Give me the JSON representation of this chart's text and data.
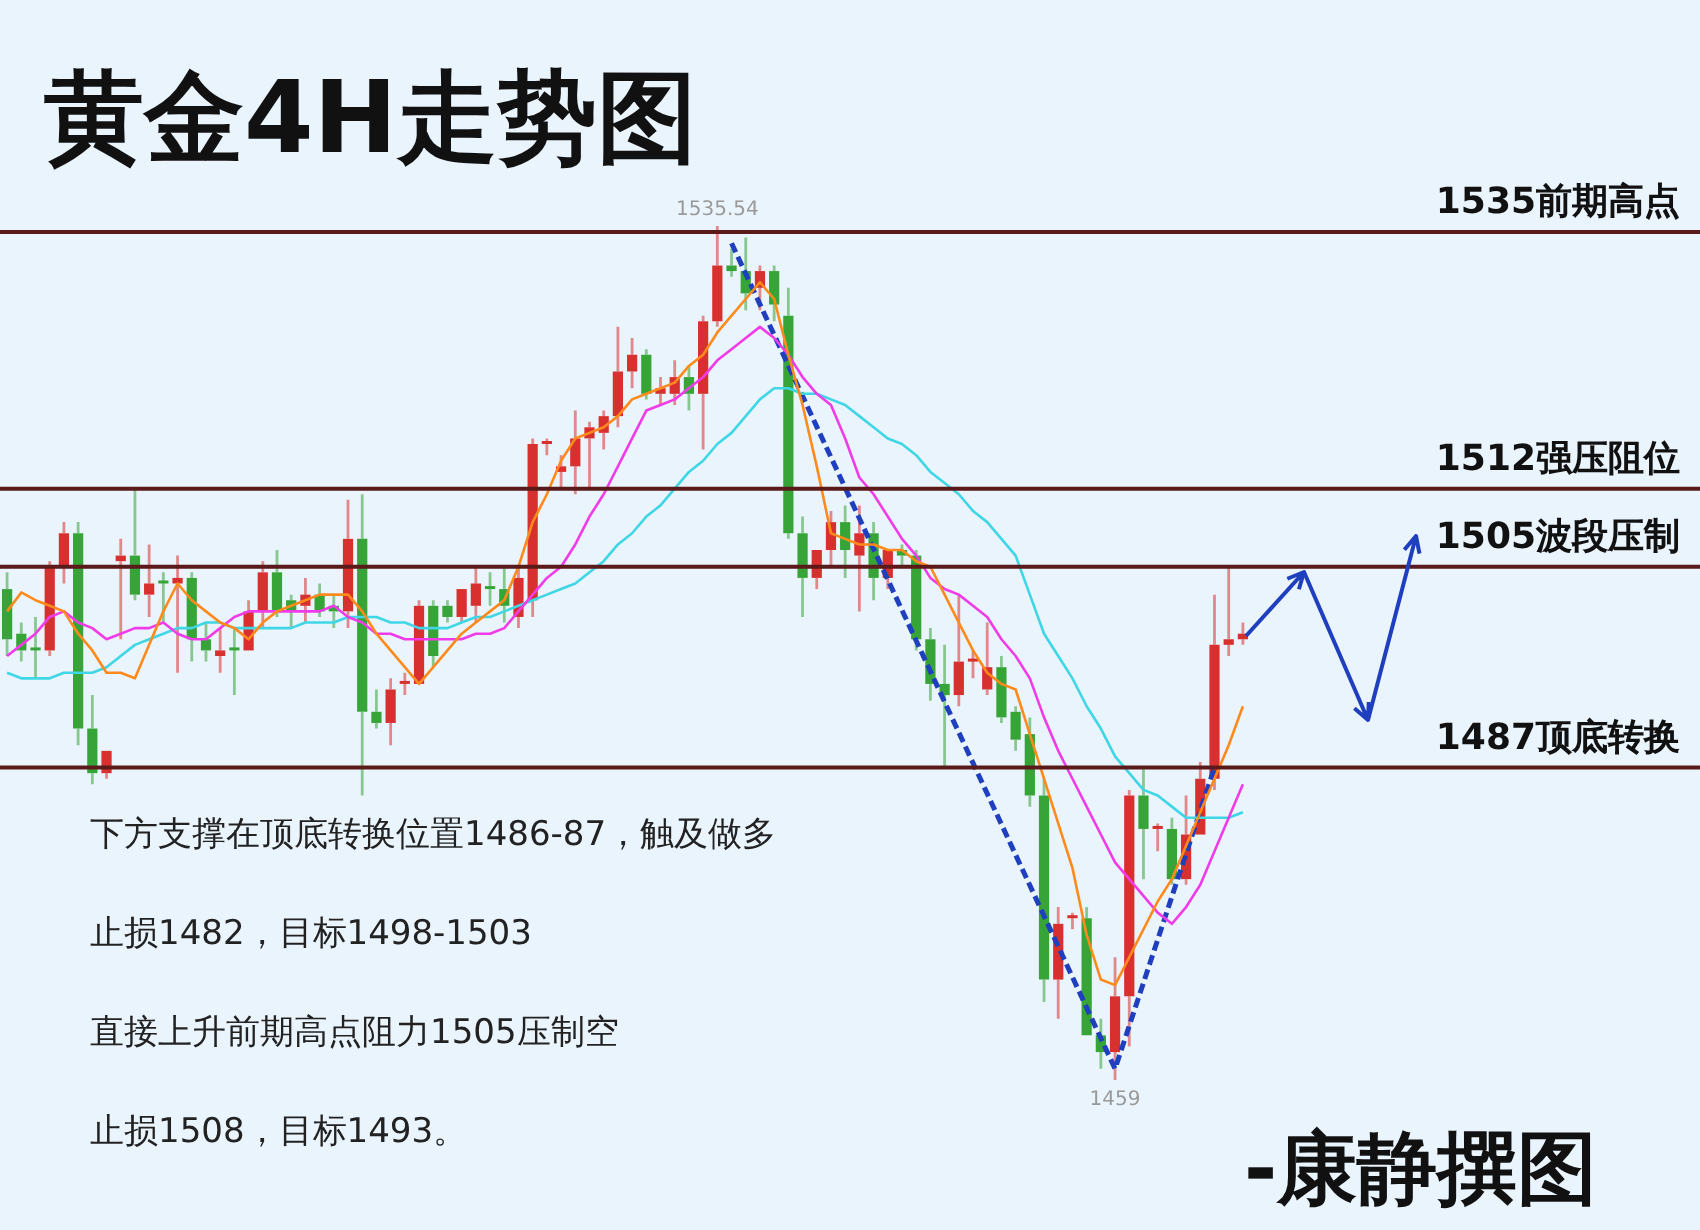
{
  "chart_data": {
    "type": "candlestick",
    "title": "黄金4H走势图",
    "categories": [
      null,
      null,
      null,
      null,
      null,
      null,
      null,
      null,
      null,
      null,
      null,
      null,
      null,
      null,
      null,
      null,
      null,
      null,
      null,
      null,
      null,
      null,
      null,
      null,
      null,
      null,
      null,
      null,
      null,
      null,
      null,
      null,
      null,
      null,
      null,
      null,
      null,
      null,
      null,
      null,
      null,
      null,
      null,
      null,
      null,
      null,
      null,
      null,
      null,
      null,
      null,
      null,
      null,
      null,
      null,
      null,
      null,
      null,
      null,
      null,
      null,
      null,
      null,
      null,
      null,
      null,
      null,
      null,
      null,
      null,
      null,
      null,
      null,
      null,
      null,
      null,
      null,
      null,
      null,
      null,
      null,
      null,
      null,
      null,
      null,
      null,
      null,
      null
    ],
    "ohlc": [
      [
        1503,
        1504.5,
        1497,
        1498.5
      ],
      [
        1499,
        1500,
        1496.5,
        1497.5
      ],
      [
        1497.5,
        1500.5,
        1495,
        1497.5
      ],
      [
        1497.5,
        1505.5,
        1497,
        1505
      ],
      [
        1505,
        1509,
        1503.5,
        1508
      ],
      [
        1508,
        1509,
        1489,
        1490.5
      ],
      [
        1490.5,
        1493.5,
        1485.5,
        1486.5
      ],
      [
        1486.5,
        1488.5,
        1486,
        1488.5
      ],
      [
        1505.5,
        1507.5,
        1498.5,
        1506
      ],
      [
        1506,
        1512,
        1502,
        1502.5
      ],
      [
        1502.5,
        1507,
        1500.5,
        1503.5
      ],
      [
        1503.5,
        1504.5,
        1500,
        1503.5
      ],
      [
        1503.5,
        1506,
        1495.5,
        1504
      ],
      [
        1504,
        1504.5,
        1496.5,
        1498.5
      ],
      [
        1498.5,
        1500,
        1496.5,
        1497.5
      ],
      [
        1497,
        1499.5,
        1495.5,
        1497.5
      ],
      [
        1497.5,
        1499.5,
        1493.5,
        1497.5
      ],
      [
        1497.5,
        1502,
        1497.5,
        1501
      ],
      [
        1501,
        1505.5,
        1499.5,
        1504.5
      ],
      [
        1504.5,
        1506.5,
        1500.5,
        1501
      ],
      [
        1502,
        1502.5,
        1499.5,
        1501
      ],
      [
        1501.5,
        1504,
        1500,
        1502.5
      ],
      [
        1502.5,
        1503.5,
        1500.5,
        1501
      ],
      [
        1501.5,
        1502.5,
        1499.5,
        1501
      ],
      [
        1501,
        1511,
        1499.5,
        1507.5
      ],
      [
        1507.5,
        1511.5,
        1484.5,
        1492
      ],
      [
        1492,
        1494,
        1490.5,
        1491
      ],
      [
        1491,
        1495,
        1489,
        1494
      ],
      [
        1494.5,
        1495.5,
        1493.5,
        1494.5
      ],
      [
        1494.5,
        1502,
        1494.5,
        1501.5
      ],
      [
        1501.5,
        1502,
        1496,
        1497
      ],
      [
        1501.5,
        1502,
        1500,
        1500.5
      ],
      [
        1500.5,
        1503,
        1500,
        1503
      ],
      [
        1501.5,
        1505,
        1500,
        1503.5
      ],
      [
        1503,
        1504.5,
        1501.5,
        1503
      ],
      [
        1503,
        1505,
        1500,
        1501.5
      ],
      [
        1500.5,
        1505,
        1499.5,
        1504
      ],
      [
        1502,
        1516.5,
        1500.5,
        1516
      ],
      [
        1516,
        1516.5,
        1515,
        1516
      ],
      [
        1513.5,
        1515,
        1512,
        1514
      ],
      [
        1514,
        1519,
        1511.5,
        1516.5
      ],
      [
        1516.5,
        1518,
        1512,
        1517.5
      ],
      [
        1517,
        1519,
        1515.5,
        1518.5
      ],
      [
        1518.5,
        1526.5,
        1517.5,
        1522.5
      ],
      [
        1522.5,
        1525.5,
        1521,
        1524
      ],
      [
        1524,
        1524.5,
        1520,
        1520.5
      ],
      [
        1520.5,
        1522,
        1519.5,
        1521
      ],
      [
        1520.5,
        1523.5,
        1519.5,
        1522
      ],
      [
        1522,
        1523,
        1519,
        1520.5
      ],
      [
        1520.5,
        1527.5,
        1515.5,
        1527
      ],
      [
        1527,
        1535.54,
        1526.5,
        1532
      ],
      [
        1532,
        1533.5,
        1531,
        1531.5
      ],
      [
        1531.5,
        1534.5,
        1528,
        1529.5
      ],
      [
        1530,
        1532,
        1528,
        1531.5
      ],
      [
        1531.5,
        1532,
        1527,
        1528.5
      ],
      [
        1527.5,
        1530,
        1507.5,
        1508
      ],
      [
        1508,
        1509.5,
        1500.5,
        1504
      ],
      [
        1504,
        1506.5,
        1503,
        1506.5
      ],
      [
        1506.5,
        1510,
        1505,
        1509
      ],
      [
        1509,
        1510.5,
        1504,
        1506.5
      ],
      [
        1506,
        1510.5,
        1501,
        1508
      ],
      [
        1508,
        1509,
        1502,
        1504
      ],
      [
        1504,
        1506.5,
        1503,
        1506.5
      ],
      [
        1506.5,
        1507,
        1505,
        1506
      ],
      [
        1506,
        1506.5,
        1497.5,
        1498.5
      ],
      [
        1498.5,
        1499.5,
        1493,
        1494.5
      ],
      [
        1494.5,
        1498,
        1487,
        1493.5
      ],
      [
        1493.5,
        1502.5,
        1492.5,
        1496.5
      ],
      [
        1496.5,
        1497.5,
        1495,
        1496.5
      ],
      [
        1494,
        1500,
        1493.5,
        1496
      ],
      [
        1496,
        1497,
        1491,
        1491.5
      ],
      [
        1492,
        1492.5,
        1488.5,
        1489.5
      ],
      [
        1490,
        1491.5,
        1483.5,
        1484.5
      ],
      [
        1484.5,
        1486,
        1466,
        1468
      ],
      [
        1468,
        1474.5,
        1464.5,
        1473
      ],
      [
        1473.5,
        1474,
        1472.5,
        1473.5
      ],
      [
        1473.5,
        1474.5,
        1463,
        1463
      ],
      [
        1463,
        1464.5,
        1460,
        1461.5
      ],
      [
        1461.5,
        1470,
        1459,
        1466.5
      ],
      [
        1466.5,
        1485,
        1462,
        1484.5
      ],
      [
        1484.5,
        1487,
        1477,
        1481.5
      ],
      [
        1481.5,
        1482,
        1479.5,
        1481.5
      ],
      [
        1481.5,
        1482.5,
        1476.5,
        1477
      ],
      [
        1477,
        1484.5,
        1476.5,
        1481
      ],
      [
        1481,
        1487.5,
        1481,
        1486
      ],
      [
        1486,
        1502.5,
        1485,
        1498
      ],
      [
        1498,
        1505,
        1497,
        1498.5
      ],
      [
        1498.5,
        1500,
        1498,
        1499
      ]
    ],
    "colors": [
      "#37a437",
      "#37a437",
      "#37a437",
      "#d8302e",
      "#d8302e",
      "#37a437",
      "#37a437",
      "#d8302e",
      "#d8302e",
      "#37a437",
      "#d8302e",
      "#37a437",
      "#d8302e",
      "#37a437",
      "#37a437",
      "#d8302e",
      "#37a437",
      "#d8302e",
      "#d8302e",
      "#37a437",
      "#37a437",
      "#d8302e",
      "#37a437",
      "#37a437",
      "#d8302e",
      "#37a437",
      "#37a437",
      "#d8302e",
      "#d8302e",
      "#d8302e",
      "#37a437",
      "#37a437",
      "#d8302e",
      "#d8302e",
      "#37a437",
      "#37a437",
      "#d8302e",
      "#d8302e",
      "#d8302e",
      "#d8302e",
      "#d8302e",
      "#d8302e",
      "#d8302e",
      "#d8302e",
      "#d8302e",
      "#37a437",
      "#d8302e",
      "#d8302e",
      "#37a437",
      "#d8302e",
      "#d8302e",
      "#37a437",
      "#37a437",
      "#d8302e",
      "#37a437",
      "#37a437",
      "#37a437",
      "#d8302e",
      "#d8302e",
      "#37a437",
      "#d8302e",
      "#37a437",
      "#d8302e",
      "#37a437",
      "#37a437",
      "#37a437",
      "#37a437",
      "#d8302e",
      "#d8302e",
      "#d8302e",
      "#37a437",
      "#37a437",
      "#37a437",
      "#37a437",
      "#d8302e",
      "#d8302e",
      "#37a437",
      "#37a437",
      "#d8302e",
      "#d8302e",
      "#37a437",
      "#d8302e",
      "#37a437",
      "#d8302e",
      "#d8302e",
      "#d8302e",
      "#d8302e",
      "#d8302e"
    ],
    "series": [
      {
        "type": "line",
        "color": "#ff8a1c",
        "values": [
          1501,
          1502.7,
          1502,
          1501.5,
          1501,
          1499,
          1497.5,
          1495.5,
          1495.5,
          1495,
          1498,
          1501,
          1503.5,
          1502,
          1501,
          1500,
          1499.5,
          1498.5,
          1500,
          1501,
          1501.5,
          1502,
          1502.5,
          1502.5,
          1502.5,
          1501,
          1499,
          1497.5,
          1496,
          1494.5,
          1496,
          1497.5,
          1499,
          1500,
          1501,
          1502,
          1505,
          1509,
          1511.5,
          1514.5,
          1516.5,
          1517,
          1517.5,
          1518.5,
          1520,
          1520.5,
          1521,
          1521.5,
          1523,
          1524,
          1526,
          1527.5,
          1529,
          1530.5,
          1529,
          1524,
          1519.5,
          1514,
          1508,
          1507.5,
          1507,
          1507,
          1506.5,
          1506.5,
          1505.5,
          1505,
          1502.5,
          1500,
          1497.5,
          1495.5,
          1494.5,
          1494,
          1490,
          1486,
          1482,
          1478,
          1472,
          1468,
          1467.5,
          1470,
          1472.5,
          1475,
          1477,
          1480,
          1483,
          1486,
          1489,
          1492.5
        ]
      },
      {
        "type": "line",
        "color": "#f03ce8",
        "values": [
          1497,
          1498,
          1499,
          1500.5,
          1501,
          1500,
          1499.5,
          1498.5,
          1499,
          1499.5,
          1499.5,
          1500,
          1499,
          1498.5,
          1498.5,
          1499.5,
          1500.5,
          1501,
          1501,
          1501,
          1501,
          1501,
          1501,
          1501.5,
          1500.5,
          1500,
          1499,
          1499,
          1498.5,
          1498.5,
          1498.5,
          1498.5,
          1498.5,
          1499,
          1499,
          1499.5,
          1501,
          1502.5,
          1504,
          1505,
          1507,
          1509.5,
          1511.5,
          1514,
          1516.5,
          1519,
          1519.5,
          1520,
          1521,
          1522,
          1523.5,
          1524.5,
          1525.5,
          1526.5,
          1525.5,
          1524,
          1522,
          1520.5,
          1519.5,
          1516.5,
          1513,
          1511.5,
          1509.5,
          1507.5,
          1506,
          1504,
          1503,
          1502.5,
          1501.5,
          1500.5,
          1498.5,
          1497,
          1495,
          1491.5,
          1488.5,
          1486,
          1483.5,
          1481,
          1478.5,
          1477,
          1475.5,
          1474,
          1473,
          1474.5,
          1476.5,
          1479.5,
          1482.5,
          1485.5
        ]
      },
      {
        "type": "line",
        "color": "#3fd6e6",
        "values": [
          1495.5,
          1495,
          1495,
          1495,
          1495.5,
          1495.5,
          1495.5,
          1496,
          1497,
          1498,
          1498.5,
          1499,
          1499.5,
          1499.5,
          1500,
          1500,
          1499.5,
          1499.5,
          1499.5,
          1499.5,
          1499.5,
          1500,
          1500,
          1500,
          1500.5,
          1500.5,
          1500.5,
          1500,
          1500,
          1499.5,
          1499.5,
          1499.5,
          1500,
          1500.5,
          1500.5,
          1501,
          1501.5,
          1502,
          1502.5,
          1503,
          1503.5,
          1504.5,
          1505.5,
          1507,
          1508,
          1509.5,
          1510.5,
          1512,
          1513.5,
          1514.5,
          1516,
          1517,
          1518.5,
          1520,
          1521,
          1521,
          1520.5,
          1520.5,
          1520,
          1519.5,
          1518.5,
          1517.5,
          1516.5,
          1516,
          1515,
          1513.5,
          1512.5,
          1511.5,
          1510,
          1509,
          1507.5,
          1506,
          1502.5,
          1499,
          1497,
          1495,
          1492.5,
          1490.5,
          1488,
          1486.5,
          1485,
          1484.5,
          1483.5,
          1482.5,
          1482.5,
          1482.5,
          1482.5,
          1483
        ]
      },
      {
        "type": "line",
        "color": "#1f3fbf",
        "line_style": "dashed",
        "values": [
          null,
          null,
          null,
          null,
          null,
          null,
          null,
          null,
          null,
          null,
          null,
          null,
          null,
          null,
          null,
          null,
          null,
          null,
          null,
          null,
          null,
          null,
          null,
          null,
          null,
          null,
          null,
          null,
          null,
          null,
          null,
          null,
          null,
          null,
          null,
          null,
          null,
          null,
          null,
          null,
          null,
          null,
          null,
          null,
          null,
          null,
          null,
          null,
          null,
          null,
          null,
          1534,
          null,
          null,
          null,
          null,
          null,
          null,
          null,
          null,
          null,
          null,
          null,
          null,
          null,
          null,
          null,
          null,
          null,
          null,
          null,
          null,
          null,
          null,
          null,
          null,
          null,
          null,
          1460,
          null,
          null,
          null,
          null,
          null,
          null,
          1487,
          null,
          null
        ]
      }
    ],
    "ref_lines": [
      {
        "axis": "y",
        "value": 1535,
        "label": "1535前期高点",
        "color": "#5a1a1a"
      },
      {
        "axis": "y",
        "value": 1512,
        "label": "1512强压阻位",
        "color": "#5a1a1a"
      },
      {
        "axis": "y",
        "value": 1505,
        "label": "1505波段压制",
        "color": "#5a1a1a"
      },
      {
        "axis": "y",
        "value": 1487,
        "label": "1487顶底转换",
        "color": "#5a1a1a"
      }
    ],
    "annotations": [
      "下方支撑在顶底转换位置1486-87，触及做多",
      "止损1482，目标1498-1503",
      "直接上升前期高点阻力1505压制空",
      "止损1508，目标1493。",
      "-康静撰图",
      {
        "text": "1535.54",
        "y": 1535.54
      },
      {
        "text": "1459",
        "y": 1459
      }
    ]
  }
}
